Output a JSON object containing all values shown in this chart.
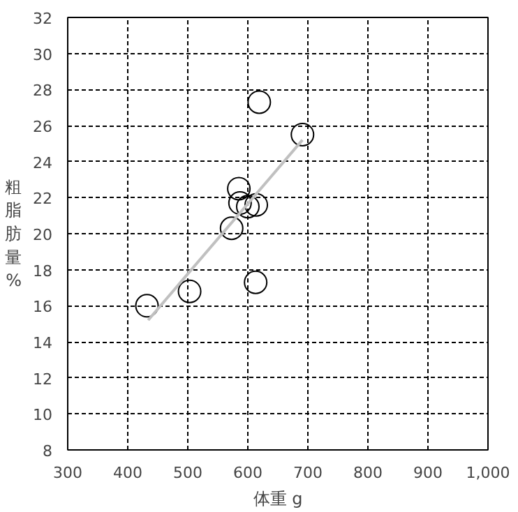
{
  "chart_data": {
    "type": "scatter",
    "xlabel": "体重 g",
    "ylabel": "粗脂肪量%",
    "xlim": [
      300,
      1000
    ],
    "ylim": [
      8,
      32
    ],
    "xticks": [
      300,
      400,
      500,
      600,
      700,
      800,
      900,
      {
        "value": 1000,
        "label": "1,000"
      }
    ],
    "yticks": [
      8,
      10,
      12,
      14,
      16,
      18,
      20,
      22,
      24,
      26,
      28,
      30,
      32
    ],
    "grid": true,
    "series": [
      {
        "color": "#000000",
        "marker": "circle",
        "x": [
          432,
          503,
          573,
          585,
          587,
          600,
          614,
          613,
          619,
          691
        ],
        "values": [
          16.0,
          16.8,
          20.3,
          22.5,
          21.7,
          21.5,
          21.6,
          17.3,
          27.3,
          25.5
        ]
      },
      {
        "type": "line",
        "color": "#c0c0c0",
        "marker": "none",
        "x": [
          434,
          691
        ],
        "values": [
          15.2,
          25.2
        ]
      }
    ]
  }
}
